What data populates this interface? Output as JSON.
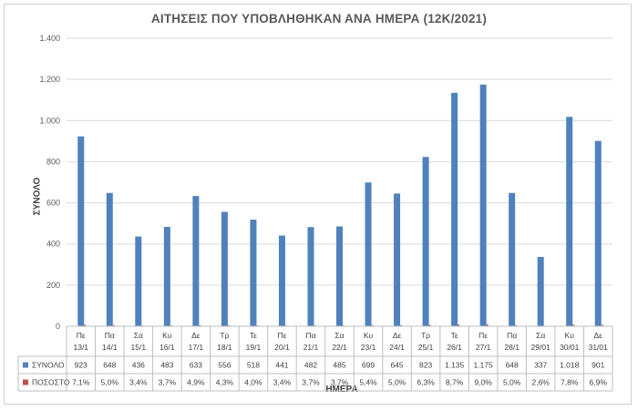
{
  "chart_data": {
    "type": "bar",
    "title": "ΑΙΤΗΣΕΙΣ ΠΟΥ ΥΠΟΒΛΗΘΗΚΑΝ ΑΝΑ ΗΜΕΡΑ (12Κ/2021)",
    "xlabel": "ΗΜΕΡΑ",
    "ylabel": "ΣΥΝΟΛΟ",
    "ylim": [
      0,
      1400
    ],
    "yticks": [
      0,
      200,
      400,
      600,
      800,
      1000,
      1200,
      1400
    ],
    "ytick_labels": [
      "0",
      "200",
      "400",
      "600",
      "800",
      "1.000",
      "1.200",
      "1.400"
    ],
    "grid": true,
    "legend": "data-table",
    "categories": [
      {
        "day": "Πε",
        "date": "13/1"
      },
      {
        "day": "Πα",
        "date": "14/1"
      },
      {
        "day": "Σα",
        "date": "15/1"
      },
      {
        "day": "Κυ",
        "date": "16/1"
      },
      {
        "day": "Δε",
        "date": "17/1"
      },
      {
        "day": "Τρ",
        "date": "18/1"
      },
      {
        "day": "Τε",
        "date": "19/1"
      },
      {
        "day": "Πε",
        "date": "20/1"
      },
      {
        "day": "Πα",
        "date": "21/1"
      },
      {
        "day": "Σα",
        "date": "22/1"
      },
      {
        "day": "Κυ",
        "date": "23/1"
      },
      {
        "day": "Δε",
        "date": "24/1"
      },
      {
        "day": "Τρ",
        "date": "25/1"
      },
      {
        "day": "Τε",
        "date": "26/1"
      },
      {
        "day": "Πε",
        "date": "27/1"
      },
      {
        "day": "Πα",
        "date": "28/1"
      },
      {
        "day": "Σα",
        "date": "29/01"
      },
      {
        "day": "Κυ",
        "date": "30/01"
      },
      {
        "day": "Δε",
        "date": "31/01"
      }
    ],
    "series": [
      {
        "name": "ΣΥΝΟΛΟ",
        "color": "#4f81bd",
        "values": [
          923,
          648,
          436,
          483,
          633,
          556,
          518,
          441,
          482,
          485,
          699,
          645,
          823,
          1135,
          1175,
          648,
          337,
          1018,
          901
        ],
        "labels": [
          "923",
          "648",
          "436",
          "483",
          "633",
          "556",
          "518",
          "441",
          "482",
          "485",
          "699",
          "645",
          "823",
          "1.135",
          "1.175",
          "648",
          "337",
          "1.018",
          "901"
        ]
      },
      {
        "name": "ΠΟΣΟΣΤΟ",
        "color": "#c0504d",
        "values": [
          7.1,
          5.0,
          3.4,
          3.7,
          4.9,
          4.3,
          4.0,
          3.4,
          3.7,
          3.7,
          5.4,
          5.0,
          6.3,
          8.7,
          9.0,
          5.0,
          2.6,
          7.8,
          6.9
        ],
        "labels": [
          "7,1%",
          "5,0%",
          "3,4%",
          "3,7%",
          "4,9%",
          "4,3%",
          "4,0%",
          "3,4%",
          "3,7%",
          "3,7%",
          "5,4%",
          "5,0%",
          "6,3%",
          "8,7%",
          "9,0%",
          "5,0%",
          "2,6%",
          "7,8%",
          "6,9%"
        ]
      }
    ]
  }
}
